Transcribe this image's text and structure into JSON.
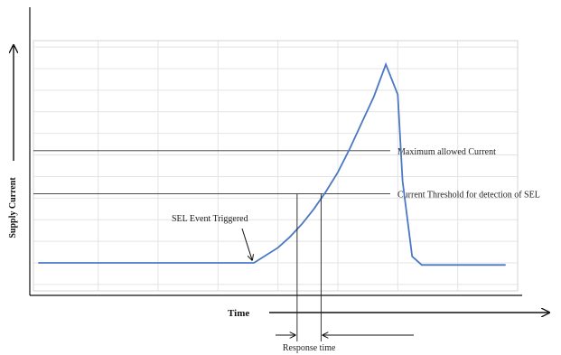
{
  "chart_data": {
    "type": "line",
    "title": "",
    "xlabel": "Time",
    "ylabel": "Supply Current",
    "grid": true,
    "legend": "none",
    "series": [
      {
        "name": "",
        "color": "#4a78c2",
        "x": [
          0,
          9,
          10,
          10.5,
          11,
          11.5,
          12,
          12.5,
          13,
          13.5,
          14,
          14.5,
          15,
          15.2,
          15.6,
          16,
          19.5
        ],
        "y": [
          1.0,
          1.0,
          1.7,
          2.2,
          2.8,
          3.5,
          4.3,
          5.2,
          6.3,
          7.5,
          8.7,
          10.2,
          8.8,
          4.8,
          1.3,
          0.9,
          0.9
        ]
      }
    ],
    "xlim": [
      -0.2,
      20
    ],
    "ylim": [
      -0.3,
      11.3
    ],
    "x_gridlines": [
      2.5,
      5,
      7.5,
      10,
      12.5,
      15,
      17.5,
      20
    ],
    "y_gridlines": [
      0,
      1,
      2,
      3,
      4,
      5,
      6,
      7,
      8,
      9,
      10,
      11
    ],
    "reference_lines": [
      {
        "y": 6.2,
        "label": "Maximum allowed Current"
      },
      {
        "y": 4.2,
        "label": "Current Threshold for detection of SEL"
      }
    ],
    "annotations": [
      {
        "text": "SEL Event Triggered",
        "arrow_to_x": 9,
        "arrow_to_y": 1.0
      },
      {
        "text": "Response time",
        "from_x": 10.8,
        "to_x": 11.8
      }
    ]
  }
}
